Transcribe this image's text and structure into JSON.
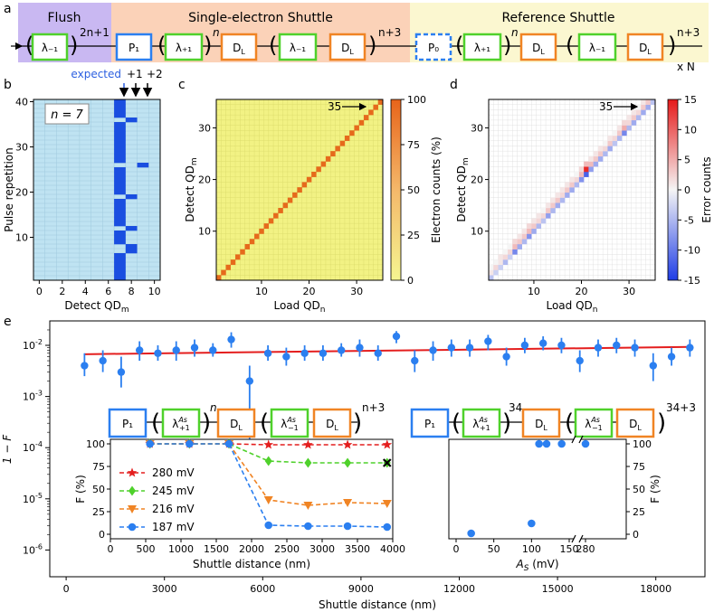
{
  "colors": {
    "flush_bg": "#c9b8f2",
    "shuttle_bg": "#fbd2b8",
    "ref_bg": "#fbf7d0",
    "green": "#4fd12b",
    "blue": "#2b7ff0",
    "orange": "#f08424",
    "red": "#e41e1e",
    "heat_bg_b": "#bfe3f2",
    "heat_on_b": "#1a4ee0",
    "heat_bg_c": "#f2f284",
    "heat_diag_c": "#e66a1c"
  },
  "panel_a": {
    "label": "a",
    "sections": [
      "Flush",
      "Single-electron Shuttle",
      "Reference Shuttle"
    ],
    "flush": {
      "exp": "2n+1",
      "box": "λ₋₁"
    },
    "shuttle": {
      "p1": "P₁",
      "lp": "λ₊₁",
      "n": "n",
      "dl": "D",
      "dl_sub": "L",
      "lm": "λ₋₁",
      "exp": "n+3"
    },
    "reference": {
      "p0": "P₀",
      "lp": "λ₊₁",
      "n": "n",
      "lm": "λ₋₁",
      "exp": "n+3",
      "repeat": "x N"
    }
  },
  "panel_b": {
    "label": "b",
    "n_label": "n = 7",
    "markers": [
      "expected",
      "+1",
      "+2"
    ],
    "xlabel": "Detect QD",
    "xlabel_sub": "m",
    "ylabel": "Pulse repetition"
  },
  "panel_c": {
    "label": "c",
    "arrow_label": "35",
    "xlabel": "Load QD",
    "xlabel_sub": "n",
    "ylabel": "Detect QD",
    "ylabel_sub": "m",
    "cbar_label": "Electron counts (%)"
  },
  "panel_d": {
    "label": "d",
    "arrow_label": "35",
    "xlabel": "Load QD",
    "xlabel_sub": "n",
    "ylabel": "Detect QD",
    "ylabel_sub": "m",
    "cbar_label": "Error counts"
  },
  "panel_e": {
    "label": "e",
    "xlabel": "Shuttle distance (nm)",
    "ylabel": "1 − F",
    "inset_left": {
      "p1": "P₁",
      "exp_n": "n",
      "exp": "n+3",
      "xlabel": "Shuttle distance (nm)",
      "ylabel": "F (%)"
    },
    "inset_right": {
      "p1": "P₁",
      "exp_n": "34",
      "exp": "34+3",
      "xlabel": "A",
      "xlabel_sub": "S",
      "xlabel_unit": " (mV)",
      "ylabel": "F (%)"
    }
  },
  "chart_data": [
    {
      "type": "heatmap",
      "panel": "b",
      "xlabel": "Detect QD_m",
      "ylabel": "Pulse repetition",
      "xlim": [
        -0.5,
        10.5
      ],
      "ylim": [
        0.5,
        40.5
      ],
      "xticks": [
        0,
        2,
        4,
        6,
        8,
        10
      ],
      "yticks": [
        10,
        20,
        30,
        40
      ],
      "expected_column": 7,
      "plus1_events": [
        {
          "rep": 36,
          "col": 8
        },
        {
          "rep": 19,
          "col": 8
        },
        {
          "rep": 12,
          "col": 8
        },
        {
          "rep": 8,
          "col": 8
        },
        {
          "rep": 7,
          "col": 8
        }
      ],
      "plus2_events": [
        {
          "rep": 26,
          "col": 9
        }
      ],
      "missing_expected": [
        36,
        26,
        19,
        12,
        8,
        7
      ]
    },
    {
      "type": "heatmap",
      "panel": "c",
      "xlabel": "Load QD_n",
      "ylabel": "Detect QD_m",
      "colorbar_label": "Electron counts (%)",
      "xlim": [
        0.5,
        35.5
      ],
      "ylim": [
        0.5,
        35.5
      ],
      "xticks": [
        10,
        20,
        30
      ],
      "yticks": [
        10,
        20,
        30
      ],
      "colorbar_ticks": [
        0,
        25,
        50,
        75,
        100
      ],
      "diagonal_value": 100,
      "off_diagonal_value": 0,
      "annotation": "35"
    },
    {
      "type": "heatmap",
      "panel": "d",
      "xlabel": "Load QD_n",
      "ylabel": "Detect QD_m",
      "colorbar_label": "Error counts",
      "xlim": [
        0.5,
        35.5
      ],
      "ylim": [
        0.5,
        35.5
      ],
      "xticks": [
        10,
        20,
        30
      ],
      "yticks": [
        10,
        20,
        30
      ],
      "colorbar_ticks": [
        -15,
        -10,
        -5,
        0,
        5,
        10,
        15
      ],
      "annotation": "35",
      "diagonal_errors": [
        -4,
        -3,
        -3,
        -5,
        -3,
        -9,
        -6,
        -5,
        -8,
        -6,
        -5,
        -4,
        -7,
        -5,
        -6,
        -5,
        -6,
        -6,
        -5,
        -8,
        -12,
        -7,
        -6,
        -6,
        -5,
        -6,
        -4,
        -5,
        -9,
        -5,
        -6,
        -5,
        -6,
        -6,
        -4
      ],
      "plus1_errors": [
        1,
        2,
        1,
        2,
        2,
        4,
        3,
        3,
        4,
        3,
        2,
        2,
        3,
        3,
        3,
        2,
        3,
        3,
        2,
        4,
        14,
        4,
        3,
        3,
        2,
        3,
        2,
        3,
        5,
        2,
        3,
        2,
        3,
        3,
        2
      ],
      "plus2_errors": [
        0,
        0,
        1,
        0,
        0,
        2,
        1,
        1,
        2,
        1,
        1,
        0,
        1,
        1,
        1,
        1,
        1,
        1,
        0,
        2,
        4,
        1,
        1,
        1,
        0,
        1,
        0,
        1,
        2,
        1,
        1,
        0,
        1,
        1,
        0
      ]
    },
    {
      "type": "scatter",
      "panel": "e",
      "yscale": "log",
      "title": "",
      "xlabel": "Shuttle distance (nm)",
      "ylabel": "1 − F",
      "xlim": [
        -500,
        19500
      ],
      "ylim": [
        3e-07,
        0.03
      ],
      "xticks": [
        0,
        3000,
        6000,
        9000,
        12000,
        15000,
        18000
      ],
      "yticks": [
        1e-06,
        1e-05,
        0.0001,
        0.001,
        0.01
      ],
      "x": [
        560,
        1120,
        1680,
        2240,
        2800,
        3360,
        3920,
        4480,
        5040,
        5600,
        6160,
        6720,
        7280,
        7840,
        8400,
        8960,
        9520,
        10080,
        10640,
        11200,
        11760,
        12320,
        12880,
        13440,
        14000,
        14560,
        15120,
        15680,
        16240,
        16800,
        17360,
        17920,
        18480,
        19040
      ],
      "y": [
        0.004,
        0.005,
        0.003,
        0.008,
        0.007,
        0.008,
        0.009,
        0.008,
        0.013,
        0.002,
        0.007,
        0.006,
        0.007,
        0.007,
        0.008,
        0.009,
        0.007,
        0.015,
        0.005,
        0.008,
        0.009,
        0.009,
        0.012,
        0.006,
        0.01,
        0.011,
        0.01,
        0.005,
        0.009,
        0.01,
        0.009,
        0.004,
        0.006,
        0.009
      ],
      "yerr_low": [
        0.0015,
        0.002,
        0.0015,
        0.003,
        0.002,
        0.003,
        0.003,
        0.002,
        0.004,
        0.0019,
        0.002,
        0.002,
        0.002,
        0.002,
        0.002,
        0.003,
        0.002,
        0.004,
        0.002,
        0.003,
        0.003,
        0.003,
        0.004,
        0.002,
        0.003,
        0.003,
        0.003,
        0.002,
        0.003,
        0.003,
        0.003,
        0.002,
        0.002,
        0.003
      ],
      "yerr_high": [
        0.003,
        0.003,
        0.003,
        0.004,
        0.003,
        0.004,
        0.004,
        0.003,
        0.005,
        0.002,
        0.003,
        0.003,
        0.003,
        0.003,
        0.003,
        0.004,
        0.003,
        0.004,
        0.003,
        0.004,
        0.004,
        0.004,
        0.004,
        0.003,
        0.004,
        0.004,
        0.004,
        0.003,
        0.004,
        0.004,
        0.004,
        0.003,
        0.003,
        0.004
      ],
      "fit_line": {
        "x": [
          560,
          19040
        ],
        "y": [
          0.0067,
          0.0093
        ]
      }
    },
    {
      "type": "line",
      "panel": "e-inset-left",
      "xlabel": "Shuttle distance (nm)",
      "ylabel": "F (%)",
      "xlim": [
        0,
        4000
      ],
      "ylim": [
        -5,
        105
      ],
      "xticks": [
        0,
        500,
        1000,
        1500,
        2000,
        2500,
        3000,
        3500,
        4000
      ],
      "yticks": [
        0,
        25,
        50,
        75,
        100
      ],
      "x": [
        560,
        1120,
        1680,
        2240,
        2800,
        3360,
        3920
      ],
      "series": [
        {
          "name": "280 mV",
          "marker": "star",
          "values": [
            100,
            100,
            100,
            99,
            99,
            99,
            99
          ]
        },
        {
          "name": "245 mV",
          "marker": "diamond",
          "values": [
            100,
            100,
            100,
            81,
            79,
            79,
            79
          ]
        },
        {
          "name": "216 mV",
          "marker": "triangle-down",
          "values": [
            100,
            100,
            100,
            38,
            32,
            35,
            34
          ]
        },
        {
          "name": "187 mV",
          "marker": "circle",
          "values": [
            100,
            100,
            100,
            10,
            9,
            9,
            8
          ]
        }
      ],
      "cross_marker": {
        "x": 3920,
        "y": 79
      }
    },
    {
      "type": "scatter",
      "panel": "e-inset-right",
      "xlabel": "A_S (mV)",
      "ylabel": "F (%)",
      "yticks": [
        0,
        25,
        50,
        75,
        100
      ],
      "xticks": [
        0,
        50,
        100,
        150,
        280
      ],
      "x": [
        20,
        100,
        110,
        120,
        140,
        280
      ],
      "y": [
        1,
        12,
        100,
        100,
        100,
        100
      ]
    }
  ]
}
